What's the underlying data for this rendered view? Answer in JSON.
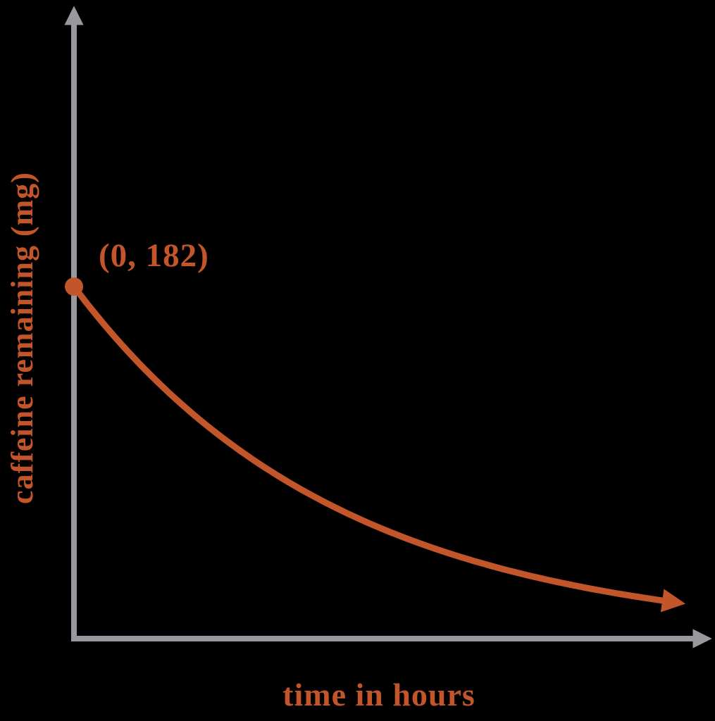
{
  "chart_data": {
    "type": "line",
    "title": "",
    "xlabel": "time in hours",
    "ylabel": "caffeine remaining (mg)",
    "x_unit": "hours",
    "y_unit": "mg",
    "grid": false,
    "legend": false,
    "axis_ticks": "none",
    "xlim": [
      0,
      10.8
    ],
    "ylim": [
      0,
      182
    ],
    "annotations": [
      {
        "text": "(0, 182)",
        "attached_to": "initial-point"
      }
    ],
    "initial_point": {
      "x": 0,
      "y": 182
    },
    "model": {
      "kind": "exponential-decay",
      "initial_mg": 182,
      "decay_per_hour": 0.225,
      "t_end_hours": 10
    },
    "series": [
      {
        "name": "caffeine remaining",
        "points": [
          [
            0,
            182
          ],
          [
            0.5,
            162.6
          ],
          [
            1,
            145.3
          ],
          [
            1.5,
            129.9
          ],
          [
            2,
            116.1
          ],
          [
            2.5,
            103.7
          ],
          [
            3,
            92.7
          ],
          [
            3.5,
            82.8
          ],
          [
            4,
            74.0
          ],
          [
            4.5,
            66.1
          ],
          [
            5,
            59.1
          ],
          [
            5.5,
            52.8
          ],
          [
            6,
            47.2
          ],
          [
            6.5,
            42.2
          ],
          [
            7,
            37.7
          ],
          [
            7.5,
            33.7
          ],
          [
            8,
            30.1
          ],
          [
            8.5,
            26.9
          ],
          [
            9,
            24.0
          ],
          [
            9.5,
            21.5
          ],
          [
            10,
            19.2
          ]
        ]
      }
    ],
    "colors": {
      "curve": "#C2552A",
      "point": "#C2552A",
      "labels": "#C2552A",
      "axis": "#97999C",
      "background": "#000000"
    }
  }
}
